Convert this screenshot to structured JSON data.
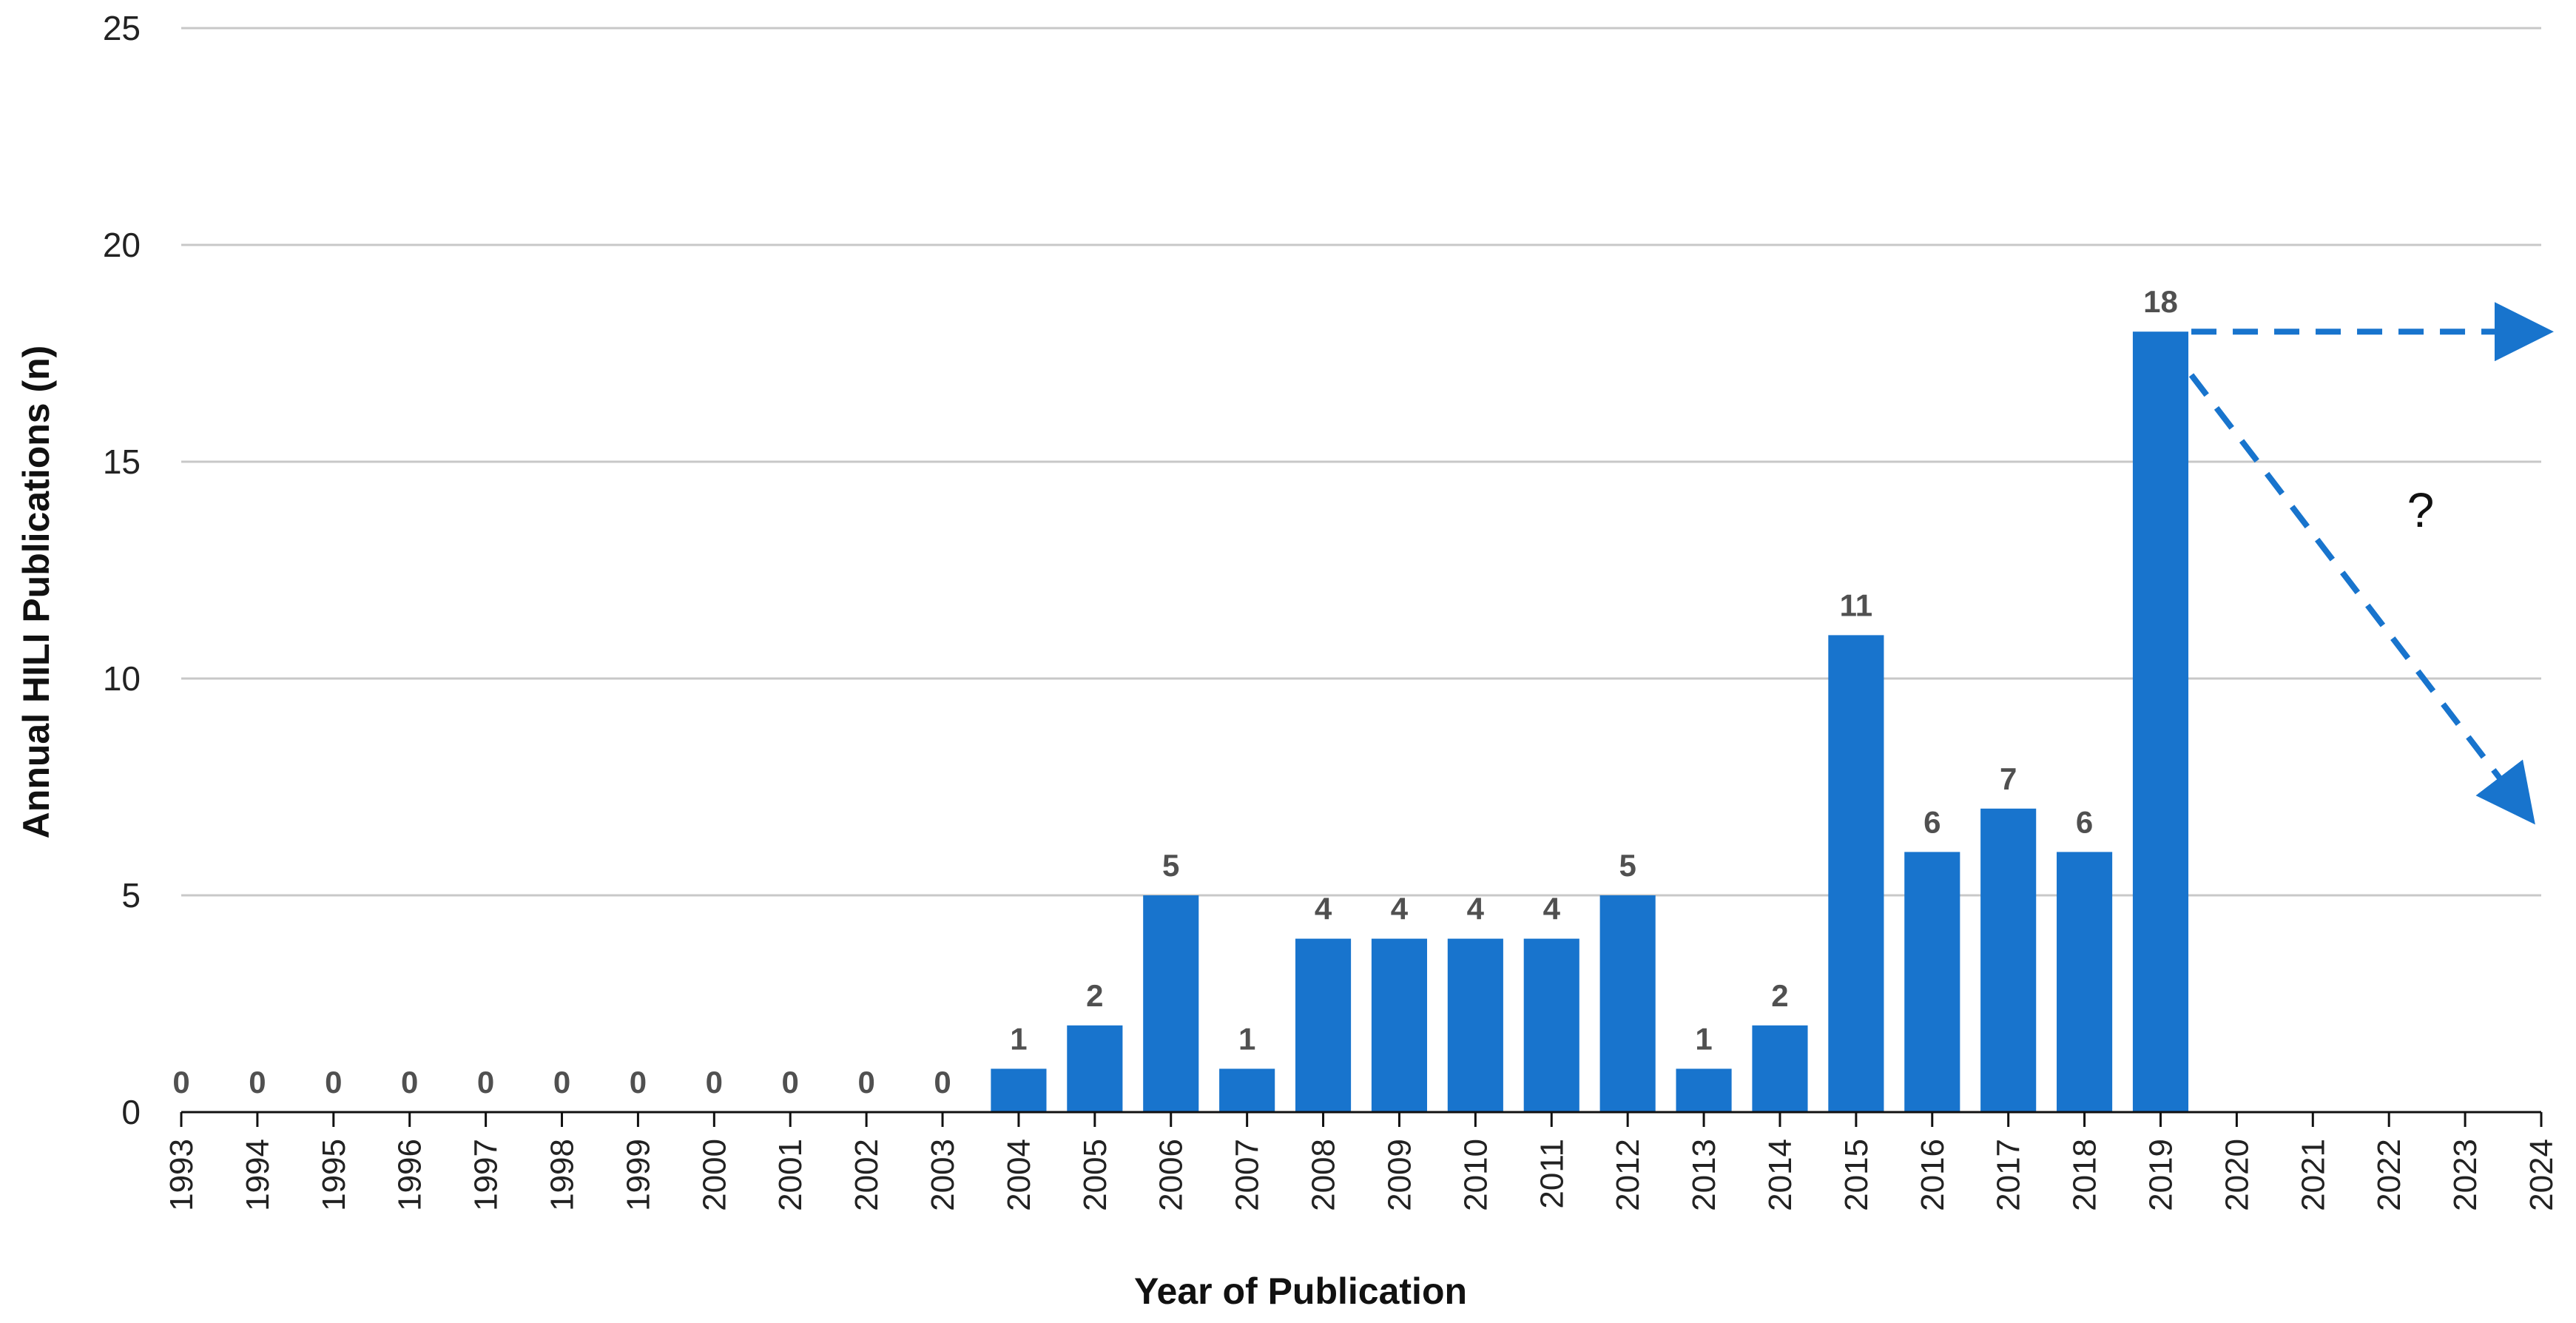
{
  "chart_data": {
    "type": "bar",
    "title": "",
    "xlabel": "Year of Publication",
    "ylabel": "Annual HILI Publications (n)",
    "ylim": [
      0,
      25
    ],
    "yticks": [
      0,
      5,
      10,
      15,
      20,
      25
    ],
    "grid": true,
    "x_axis_categories": [
      "1993",
      "1994",
      "1995",
      "1996",
      "1997",
      "1998",
      "1999",
      "2000",
      "2001",
      "2002",
      "2003",
      "2004",
      "2005",
      "2006",
      "2007",
      "2008",
      "2009",
      "2010",
      "2011",
      "2012",
      "2013",
      "2014",
      "2015",
      "2016",
      "2017",
      "2018",
      "2019",
      "2020",
      "2021",
      "2022",
      "2023",
      "2024"
    ],
    "categories": [
      "1993",
      "1994",
      "1995",
      "1996",
      "1997",
      "1998",
      "1999",
      "2000",
      "2001",
      "2002",
      "2003",
      "2004",
      "2005",
      "2006",
      "2007",
      "2008",
      "2009",
      "2010",
      "2011",
      "2012",
      "2013",
      "2014",
      "2015",
      "2016",
      "2017",
      "2018",
      "2019"
    ],
    "values": [
      0,
      0,
      0,
      0,
      0,
      0,
      0,
      0,
      0,
      0,
      0,
      1,
      2,
      5,
      1,
      4,
      4,
      4,
      4,
      5,
      1,
      2,
      11,
      6,
      7,
      6,
      18
    ],
    "bar_color": "#1874cd",
    "annotation": {
      "text": "?",
      "arrows": [
        {
          "from": [
            "2019",
            18
          ],
          "to": [
            "2024",
            18
          ],
          "style": "dashed"
        },
        {
          "from": [
            "2019",
            17
          ],
          "to": [
            "2024",
            7.5
          ],
          "style": "dashed"
        }
      ]
    }
  }
}
